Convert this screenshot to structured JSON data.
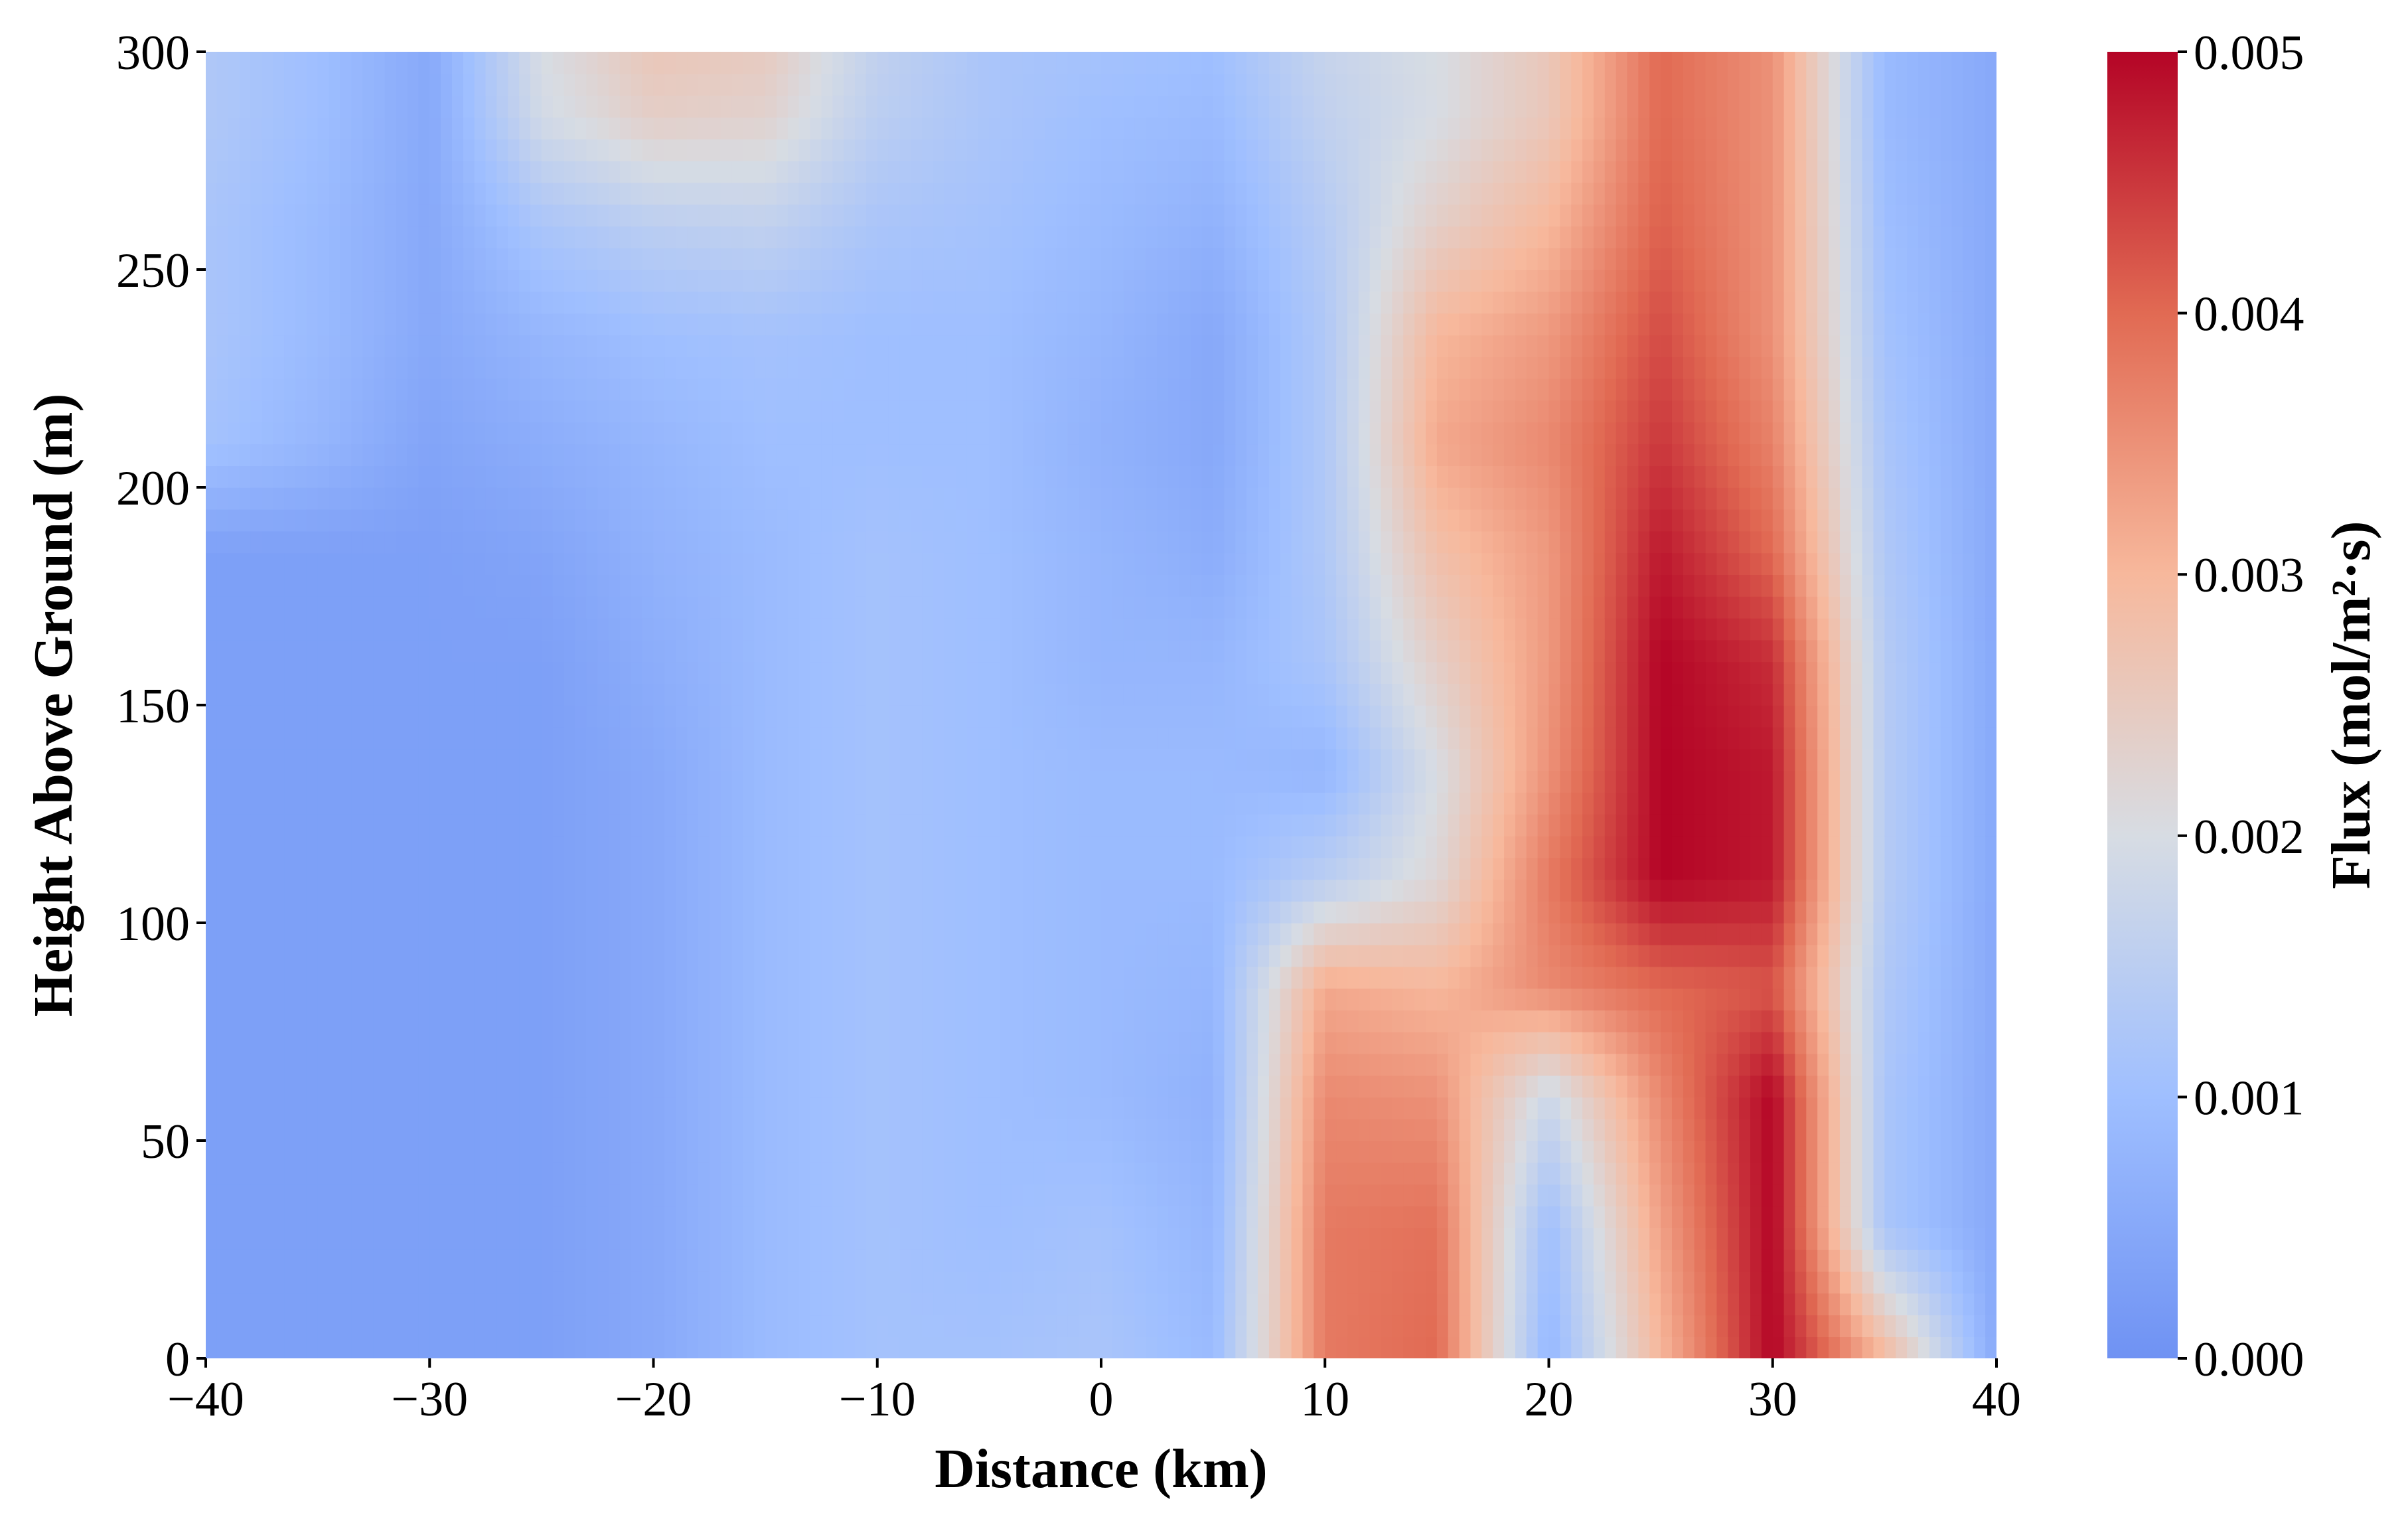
{
  "chart_data": {
    "type": "heatmap",
    "title": "",
    "xlabel": "Distance (km)",
    "ylabel": "Height Above Ground (m)",
    "xlim": [
      -40,
      40
    ],
    "ylim": [
      0,
      300
    ],
    "x_ticks": [
      -40,
      -30,
      -20,
      -10,
      0,
      10,
      20,
      30,
      40
    ],
    "x_tick_labels": [
      "−40",
      "−30",
      "−20",
      "−10",
      "0",
      "10",
      "20",
      "30",
      "40"
    ],
    "y_ticks": [
      0,
      50,
      100,
      150,
      200,
      250,
      300
    ],
    "y_tick_labels": [
      "0",
      "50",
      "100",
      "150",
      "200",
      "250",
      "300"
    ],
    "colorbar": {
      "label": "Flux (mol/m²·s)",
      "colormap": "coolwarm",
      "range": [
        0.0,
        0.005
      ],
      "ticks": [
        0.0,
        0.001,
        0.002,
        0.003,
        0.004,
        0.005
      ],
      "tick_labels": [
        "0.000",
        "0.001",
        "0.002",
        "0.003",
        "0.004",
        "0.005"
      ]
    },
    "heights_m": [
      0,
      30,
      60,
      85,
      110,
      135,
      160,
      185,
      210,
      235,
      260,
      285,
      300
    ],
    "columns": [
      {
        "x": -40,
        "flux": [
          0.0003,
          0.0003,
          0.0003,
          0.0003,
          0.0003,
          0.0003,
          0.0003,
          0.0003,
          0.0011,
          0.0012,
          0.0012,
          0.0013,
          0.0013
        ]
      },
      {
        "x": -35,
        "flux": [
          0.0003,
          0.0003,
          0.0003,
          0.0003,
          0.0003,
          0.0003,
          0.0003,
          0.0003,
          0.0008,
          0.0009,
          0.0009,
          0.001,
          0.001
        ]
      },
      {
        "x": -30,
        "flux": [
          0.0003,
          0.0003,
          0.0003,
          0.0003,
          0.0003,
          0.0003,
          0.0003,
          0.0003,
          0.0004,
          0.0005,
          0.0005,
          0.0005,
          0.0005
        ]
      },
      {
        "x": -25,
        "flux": [
          0.0003,
          0.0003,
          0.0003,
          0.0003,
          0.0003,
          0.0003,
          0.0003,
          0.0004,
          0.0006,
          0.0008,
          0.0012,
          0.0019,
          0.002
        ]
      },
      {
        "x": -20,
        "flux": [
          0.0005,
          0.0005,
          0.0005,
          0.0005,
          0.0005,
          0.0005,
          0.0006,
          0.0007,
          0.0008,
          0.001,
          0.0015,
          0.0024,
          0.0026
        ]
      },
      {
        "x": -15,
        "flux": [
          0.0009,
          0.0009,
          0.0009,
          0.0009,
          0.0009,
          0.0009,
          0.0009,
          0.0009,
          0.001,
          0.0011,
          0.0016,
          0.0023,
          0.0025
        ]
      },
      {
        "x": -10,
        "flux": [
          0.0011,
          0.0011,
          0.0011,
          0.0011,
          0.0011,
          0.0011,
          0.0011,
          0.0011,
          0.001,
          0.001,
          0.0012,
          0.0015,
          0.0016
        ]
      },
      {
        "x": -5,
        "flux": [
          0.0011,
          0.001,
          0.001,
          0.001,
          0.001,
          0.001,
          0.001,
          0.001,
          0.001,
          0.001,
          0.0011,
          0.0012,
          0.0012
        ]
      },
      {
        "x": 0,
        "flux": [
          0.0012,
          0.0011,
          0.0009,
          0.0009,
          0.0009,
          0.0009,
          0.0008,
          0.0008,
          0.0007,
          0.0008,
          0.0009,
          0.001,
          0.0011
        ]
      },
      {
        "x": 5,
        "flux": [
          0.0009,
          0.0008,
          0.0007,
          0.0008,
          0.0009,
          0.0009,
          0.0008,
          0.0006,
          0.0005,
          0.0005,
          0.0007,
          0.0009,
          0.001
        ]
      },
      {
        "x": 10,
        "flux": [
          0.0038,
          0.0038,
          0.0036,
          0.0032,
          0.0015,
          0.0008,
          0.0012,
          0.0013,
          0.0013,
          0.0013,
          0.0014,
          0.0016,
          0.0017
        ]
      },
      {
        "x": 15,
        "flux": [
          0.004,
          0.0039,
          0.0035,
          0.003,
          0.0022,
          0.002,
          0.0024,
          0.0028,
          0.0032,
          0.003,
          0.0024,
          0.002,
          0.002
        ]
      },
      {
        "x": 20,
        "flux": [
          0.0008,
          0.001,
          0.0018,
          0.0036,
          0.0038,
          0.0035,
          0.0034,
          0.0034,
          0.0036,
          0.0034,
          0.003,
          0.0026,
          0.0026
        ]
      },
      {
        "x": 25,
        "flux": [
          0.003,
          0.0033,
          0.0036,
          0.004,
          0.005,
          0.005,
          0.005,
          0.0048,
          0.0045,
          0.0043,
          0.0041,
          0.004,
          0.004
        ]
      },
      {
        "x": 30,
        "flux": [
          0.005,
          0.005,
          0.005,
          0.0042,
          0.0048,
          0.0048,
          0.0046,
          0.004,
          0.0037,
          0.0035,
          0.0035,
          0.0035,
          0.0035
        ]
      },
      {
        "x": 35,
        "flux": [
          0.003,
          0.0012,
          0.0012,
          0.0013,
          0.0014,
          0.0014,
          0.0014,
          0.0013,
          0.0012,
          0.0011,
          0.001,
          0.0009,
          0.0009
        ]
      },
      {
        "x": 40,
        "flux": [
          0.0005,
          0.0005,
          0.0005,
          0.0005,
          0.0005,
          0.0005,
          0.0005,
          0.0005,
          0.0005,
          0.0005,
          0.0005,
          0.0005,
          0.0005
        ]
      }
    ]
  }
}
